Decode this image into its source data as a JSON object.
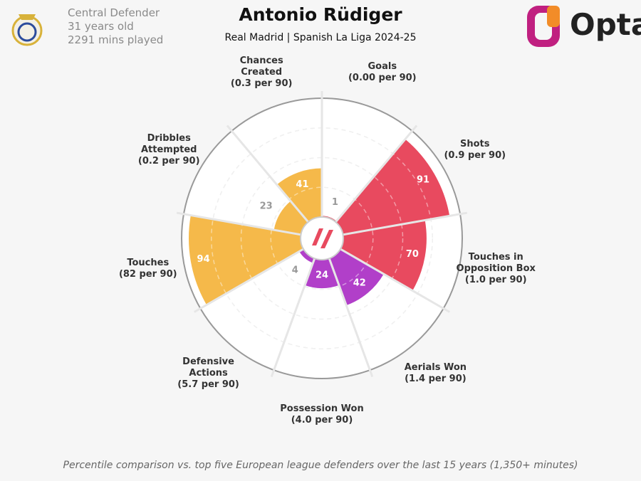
{
  "player": {
    "position": "Central Defender",
    "age": "31 years old",
    "minutes": "2291 mins played"
  },
  "logo": "Opta",
  "chart_data": {
    "type": "polar-bar",
    "title": "Antonio Rüdiger",
    "subtitle": "Real Madrid | Spanish La Liga 2024-25",
    "categories": [
      "Goals",
      "Shots",
      "Touches in Opposition Box",
      "Aerials Won",
      "Possession Won",
      "Defensive Actions",
      "Touches",
      "Dribbles Attempted",
      "Chances Created"
    ],
    "sublabels": [
      "(0.00 per 90)",
      "(0.9 per 90)",
      "(1.0 per 90)",
      "(1.4 per 90)",
      "(4.0 per 90)",
      "(5.7 per 90)",
      "(82 per 90)",
      "(0.2 per 90)",
      "(0.3 per 90)"
    ],
    "values": [
      1,
      91,
      70,
      42,
      24,
      4,
      94,
      23,
      41
    ],
    "colors": [
      "#e84a5f",
      "#e84a5f",
      "#e84a5f",
      "#b13fc9",
      "#b13fc9",
      "#b13fc9",
      "#f5b94a",
      "#f5b94a",
      "#f5b94a"
    ],
    "rlim": [
      0,
      100
    ],
    "rticks": [
      25,
      50,
      75,
      100
    ],
    "footnote": "Percentile comparison vs. top five European league defenders over the last 15 years (1,350+ minutes)"
  }
}
